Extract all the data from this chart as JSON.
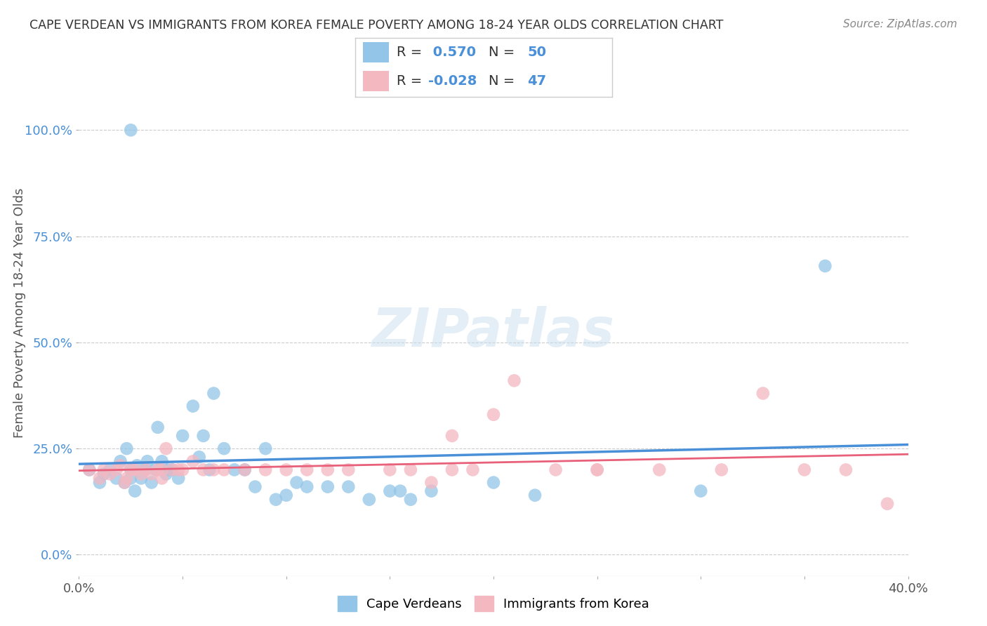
{
  "title": "CAPE VERDEAN VS IMMIGRANTS FROM KOREA FEMALE POVERTY AMONG 18-24 YEAR OLDS CORRELATION CHART",
  "source": "Source: ZipAtlas.com",
  "ylabel": "Female Poverty Among 18-24 Year Olds",
  "xlim": [
    0.0,
    0.4
  ],
  "ylim": [
    -0.05,
    1.1
  ],
  "xticks": [
    0.0,
    0.05,
    0.1,
    0.15,
    0.2,
    0.25,
    0.3,
    0.35,
    0.4
  ],
  "xtick_edge_labels": {
    "0": "0.0%",
    "8": "40.0%"
  },
  "yticks": [
    0.0,
    0.25,
    0.5,
    0.75,
    1.0
  ],
  "ytick_labels": [
    "0.0%",
    "25.0%",
    "50.0%",
    "75.0%",
    "100.0%"
  ],
  "blue_R": 0.57,
  "blue_N": 50,
  "pink_R": -0.028,
  "pink_N": 47,
  "blue_color": "#92C5E8",
  "pink_color": "#F4B8C1",
  "blue_line_color": "#4A90D9",
  "pink_line_color": "#E8607A",
  "legend_blue_label": "Cape Verdeans",
  "legend_pink_label": "Immigrants from Korea",
  "watermark": "ZIPatlas",
  "background_color": "#ffffff",
  "blue_x": [
    0.005,
    0.01,
    0.012,
    0.015,
    0.018,
    0.02,
    0.022,
    0.023,
    0.025,
    0.025,
    0.027,
    0.028,
    0.03,
    0.032,
    0.033,
    0.035,
    0.037,
    0.038,
    0.04,
    0.042,
    0.043,
    0.045,
    0.048,
    0.05,
    0.055,
    0.058,
    0.06,
    0.063,
    0.065,
    0.07,
    0.075,
    0.08,
    0.085,
    0.09,
    0.095,
    0.1,
    0.105,
    0.11,
    0.12,
    0.13,
    0.14,
    0.15,
    0.155,
    0.16,
    0.17,
    0.2,
    0.22,
    0.3,
    0.36,
    0.025
  ],
  "blue_y": [
    0.2,
    0.17,
    0.19,
    0.2,
    0.18,
    0.22,
    0.17,
    0.25,
    0.2,
    0.18,
    0.15,
    0.21,
    0.18,
    0.2,
    0.22,
    0.17,
    0.2,
    0.3,
    0.22,
    0.19,
    0.2,
    0.2,
    0.18,
    0.28,
    0.35,
    0.23,
    0.28,
    0.2,
    0.38,
    0.25,
    0.2,
    0.2,
    0.16,
    0.25,
    0.13,
    0.14,
    0.17,
    0.16,
    0.16,
    0.16,
    0.13,
    0.15,
    0.15,
    0.13,
    0.15,
    0.17,
    0.14,
    0.15,
    0.68,
    1.0
  ],
  "pink_x": [
    0.005,
    0.01,
    0.012,
    0.015,
    0.018,
    0.02,
    0.022,
    0.023,
    0.025,
    0.027,
    0.03,
    0.032,
    0.035,
    0.038,
    0.04,
    0.042,
    0.045,
    0.048,
    0.05,
    0.055,
    0.06,
    0.065,
    0.07,
    0.08,
    0.09,
    0.1,
    0.11,
    0.13,
    0.15,
    0.16,
    0.17,
    0.18,
    0.19,
    0.2,
    0.21,
    0.23,
    0.25,
    0.28,
    0.31,
    0.33,
    0.35,
    0.37,
    0.39,
    0.25,
    0.18,
    0.12,
    0.04
  ],
  "pink_y": [
    0.2,
    0.18,
    0.2,
    0.19,
    0.2,
    0.21,
    0.17,
    0.18,
    0.2,
    0.2,
    0.19,
    0.2,
    0.19,
    0.2,
    0.18,
    0.25,
    0.2,
    0.2,
    0.2,
    0.22,
    0.2,
    0.2,
    0.2,
    0.2,
    0.2,
    0.2,
    0.2,
    0.2,
    0.2,
    0.2,
    0.17,
    0.28,
    0.2,
    0.33,
    0.41,
    0.2,
    0.2,
    0.2,
    0.2,
    0.38,
    0.2,
    0.2,
    0.12,
    0.2,
    0.2,
    0.2,
    0.2
  ]
}
